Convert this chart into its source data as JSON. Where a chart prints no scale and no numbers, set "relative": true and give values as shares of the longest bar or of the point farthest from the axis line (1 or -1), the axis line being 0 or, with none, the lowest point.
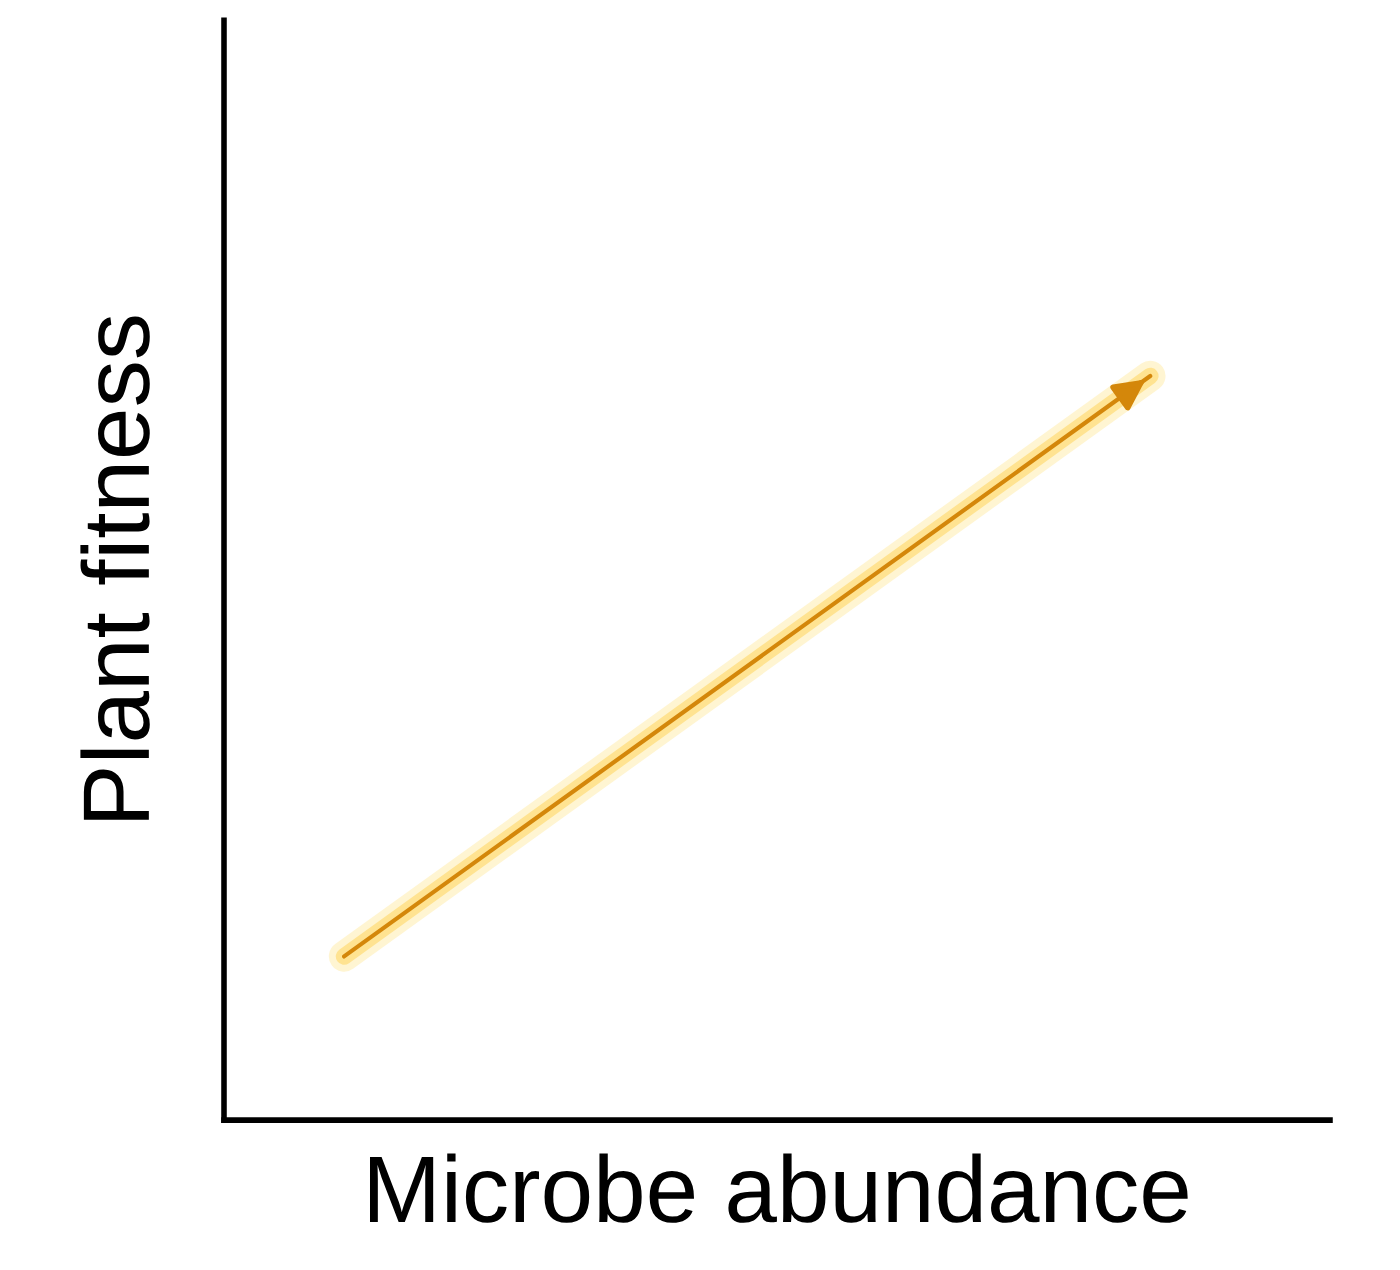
{
  "chart_data": {
    "type": "line",
    "relative": true,
    "xlabel": "Microbe abundance",
    "ylabel": "Plant fitness",
    "categories": [
      null,
      null
    ],
    "series": [
      {
        "color": "#d4870a",
        "values": [
          0.22,
          1
        ]
      }
    ],
    "marker": "none",
    "line_style": "solid",
    "legend": false
  }
}
